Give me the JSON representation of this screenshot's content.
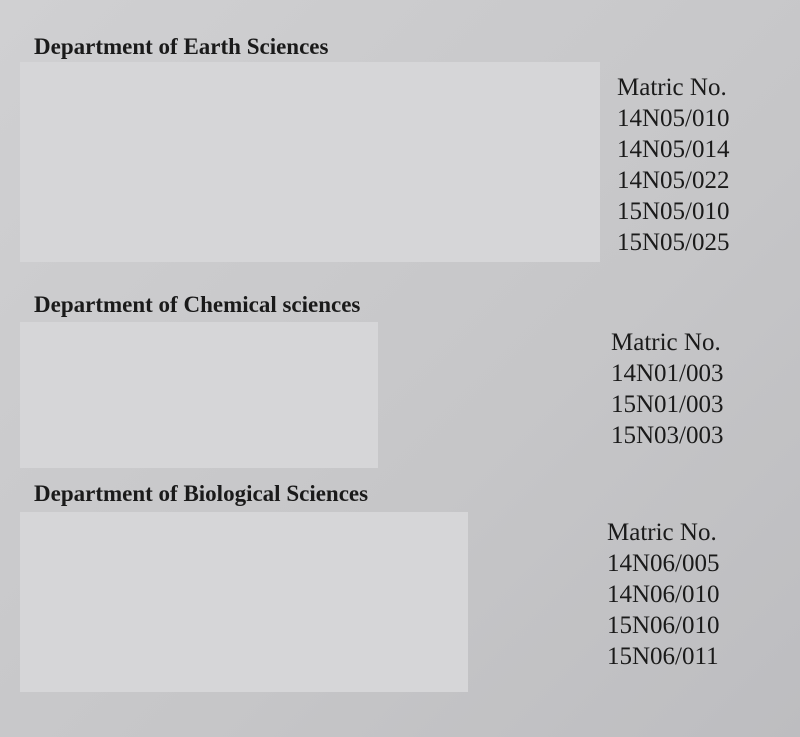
{
  "sections": [
    {
      "title": "Department of Earth Sciences",
      "column_header": "Matric No.",
      "matric_numbers": [
        "14N05/010",
        "14N05/014",
        "14N05/022",
        "15N05/010",
        "15N05/025"
      ]
    },
    {
      "title": "Department of Chemical sciences",
      "column_header": "Matric No.",
      "matric_numbers": [
        "14N01/003",
        "15N01/003",
        "15N03/003"
      ]
    },
    {
      "title": "Department of Biological Sciences",
      "column_header": "Matric No.",
      "matric_numbers": [
        "14N06/005",
        "14N06/010",
        "15N06/010",
        "15N06/011"
      ]
    }
  ]
}
